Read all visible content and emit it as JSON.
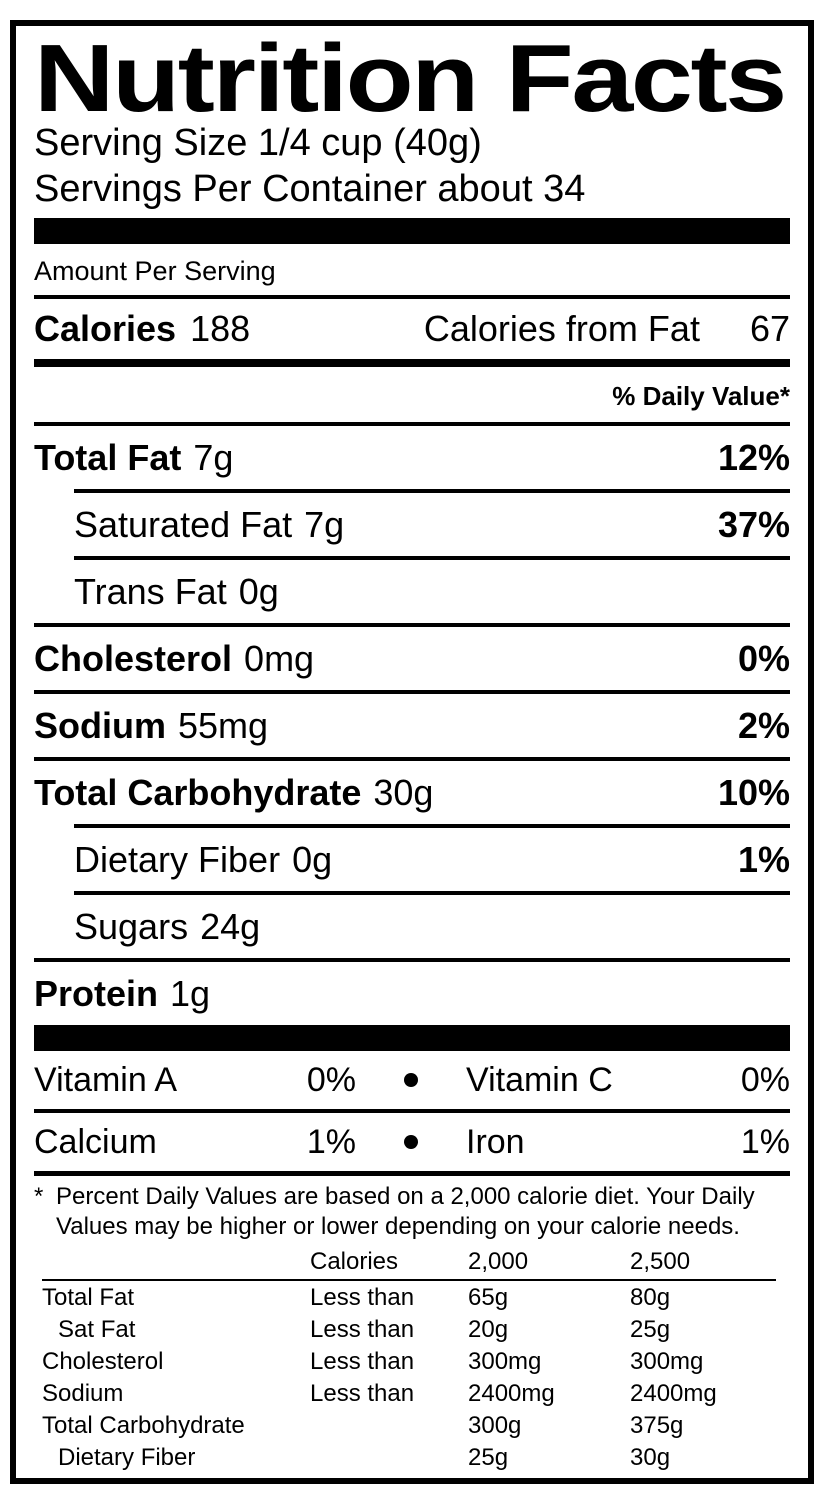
{
  "colors": {
    "ink": "#000000",
    "paper": "#ffffff"
  },
  "label": {
    "title": "Nutrition Facts",
    "serving": {
      "size": "Serving Size 1/4 cup (40g)",
      "per_container": "Servings Per Container about 34"
    },
    "amount_per_serving": "Amount Per Serving",
    "calories": {
      "label": "Calories",
      "value": "188",
      "from_fat_label": "Calories from Fat",
      "from_fat_value": "67"
    },
    "daily_value_header": "% Daily Value*",
    "nutrients": [
      {
        "name": "Total Fat",
        "amount": "7g",
        "dv": "12%"
      },
      {
        "name": "Saturated Fat",
        "amount": "7g",
        "dv": "37%"
      },
      {
        "name": "Trans Fat",
        "amount": "0g",
        "dv": ""
      },
      {
        "name": "Cholesterol",
        "amount": "0mg",
        "dv": "0%"
      },
      {
        "name": "Sodium",
        "amount": "55mg",
        "dv": "2%"
      },
      {
        "name": "Total Carbohydrate",
        "amount": "30g",
        "dv": "10%"
      },
      {
        "name": "Dietary Fiber",
        "amount": "0g",
        "dv": "1%"
      },
      {
        "name": "Sugars",
        "amount": "24g",
        "dv": ""
      },
      {
        "name": "Protein",
        "amount": "1g",
        "dv": ""
      }
    ],
    "vitamins": [
      {
        "name": "Vitamin A",
        "value": "0%"
      },
      {
        "name": "Vitamin C",
        "value": "0%"
      },
      {
        "name": "Calcium",
        "value": "1%"
      },
      {
        "name": "Iron",
        "value": "1%"
      }
    ],
    "footnote": {
      "marker": "*",
      "line1": "Percent Daily Values are based on a 2,000 calorie diet. Your Daily",
      "line2": "Values may be higher or lower depending on your calorie needs."
    },
    "dv_table": {
      "header": {
        "col2": "Calories",
        "col3": "2,000",
        "col4": "2,500"
      },
      "rows": [
        {
          "label": "Total Fat",
          "qualifier": "Less than",
          "v2000": "65g",
          "v2500": "80g"
        },
        {
          "label": "Sat Fat",
          "qualifier": "Less than",
          "v2000": "20g",
          "v2500": "25g"
        },
        {
          "label": "Cholesterol",
          "qualifier": "Less than",
          "v2000": "300mg",
          "v2500": "300mg"
        },
        {
          "label": "Sodium",
          "qualifier": "Less than",
          "v2000": "2400mg",
          "v2500": "2400mg"
        },
        {
          "label": "Total Carbohydrate",
          "qualifier": "",
          "v2000": "300g",
          "v2500": "375g"
        },
        {
          "label": "Dietary Fiber",
          "qualifier": "",
          "v2000": "25g",
          "v2500": "30g"
        }
      ]
    }
  }
}
